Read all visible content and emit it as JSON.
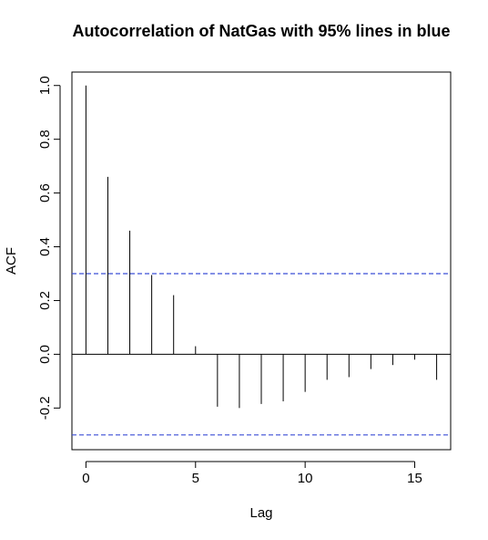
{
  "chart_data": {
    "type": "bar",
    "title": "Autocorrelation of NatGas with 95% lines in blue",
    "xlabel": "Lag",
    "ylabel": "ACF",
    "xlim": [
      -0.64,
      16.64
    ],
    "ylim": [
      -0.355,
      1.05
    ],
    "x_ticks": [
      0,
      5,
      10,
      15
    ],
    "y_ticks": [
      -0.2,
      0.0,
      0.2,
      0.4,
      0.6,
      0.8,
      1.0
    ],
    "x_tick_labels": [
      "0",
      "5",
      "10",
      "15"
    ],
    "y_tick_labels": [
      "-0.2",
      "0.0",
      "0.2",
      "0.4",
      "0.6",
      "0.8",
      "1.0"
    ],
    "lags": [
      0,
      1,
      2,
      3,
      4,
      5,
      6,
      7,
      8,
      9,
      10,
      11,
      12,
      13,
      14,
      15,
      16
    ],
    "values": [
      1.0,
      0.66,
      0.46,
      0.295,
      0.22,
      0.03,
      -0.195,
      -0.2,
      -0.185,
      -0.175,
      -0.14,
      -0.095,
      -0.085,
      -0.055,
      -0.04,
      -0.02,
      -0.095
    ],
    "confidence_bound": 0.3,
    "confidence_color": "#3b4fd6",
    "bar_color": "#000000",
    "grid": false
  }
}
